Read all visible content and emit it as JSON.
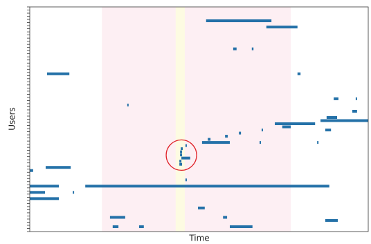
{
  "chart_data": {
    "type": "timeline",
    "xlabel": "Time",
    "ylabel": "Users",
    "xlim": [
      0,
      100
    ],
    "ylim": [
      0,
      72
    ],
    "yticks": [
      0,
      1,
      2,
      3,
      4,
      5,
      6,
      7,
      8,
      9,
      10,
      11,
      12,
      13,
      14,
      15,
      16,
      17,
      18,
      19,
      20,
      21,
      22,
      23,
      24,
      25,
      26,
      27,
      28,
      29,
      30,
      31,
      32,
      33,
      34,
      35,
      36,
      37,
      38,
      39,
      40,
      41,
      42,
      43,
      44,
      45,
      46,
      47,
      48,
      49,
      50,
      51,
      52,
      53,
      54,
      55,
      56,
      57,
      58,
      59,
      60,
      61,
      62,
      63,
      64,
      65,
      66,
      67,
      68,
      69,
      70,
      71,
      72
    ],
    "color": "#2471a8",
    "regions": [
      {
        "start": 21.3,
        "end": 77.1,
        "color": "#fdeff3"
      },
      {
        "start": 43.1,
        "end": 45.8,
        "color": "#fdfbe2"
      }
    ],
    "annotation": {
      "x": 44.8,
      "user": 47.5,
      "color": "#e0242a"
    },
    "segments": [
      {
        "user": 4,
        "start": 52.1,
        "end": 71.4
      },
      {
        "user": 6,
        "start": 69.9,
        "end": 79.1
      },
      {
        "user": 13,
        "start": 60.1,
        "end": 61.1
      },
      {
        "user": 13,
        "start": 65.6,
        "end": 66.1
      },
      {
        "user": 21,
        "start": 5.1,
        "end": 11.7
      },
      {
        "user": 21,
        "start": 79.1,
        "end": 80.0
      },
      {
        "user": 29,
        "start": 89.8,
        "end": 91.2
      },
      {
        "user": 29,
        "start": 96.3,
        "end": 96.7
      },
      {
        "user": 31,
        "start": 28.8,
        "end": 29.2
      },
      {
        "user": 33,
        "start": 95.3,
        "end": 96.7
      },
      {
        "user": 35,
        "start": 87.7,
        "end": 90.8
      },
      {
        "user": 36,
        "start": 85.9,
        "end": 100
      },
      {
        "user": 37,
        "start": 72.4,
        "end": 84.3
      },
      {
        "user": 37,
        "start": 77.1,
        "end": 78.7
      },
      {
        "user": 38,
        "start": 74.6,
        "end": 77.1
      },
      {
        "user": 39,
        "start": 87.3,
        "end": 89.0
      },
      {
        "user": 39,
        "start": 68.5,
        "end": 68.7
      },
      {
        "user": 40,
        "start": 61.8,
        "end": 62.4
      },
      {
        "user": 41,
        "start": 57.7,
        "end": 58.5
      },
      {
        "user": 42,
        "start": 52.6,
        "end": 53.4
      },
      {
        "user": 43,
        "start": 50.9,
        "end": 59.1
      },
      {
        "user": 43,
        "start": 67.9,
        "end": 68.1
      },
      {
        "user": 43,
        "start": 84.9,
        "end": 85.1
      },
      {
        "user": 44,
        "start": 46.0,
        "end": 46.4
      },
      {
        "user": 45,
        "start": 44.6,
        "end": 45.2
      },
      {
        "user": 46,
        "start": 44.4,
        "end": 45.0
      },
      {
        "user": 47,
        "start": 44.4,
        "end": 45.0
      },
      {
        "user": 48,
        "start": 44.8,
        "end": 47.4
      },
      {
        "user": 49,
        "start": 44.2,
        "end": 44.8
      },
      {
        "user": 50,
        "start": 44.2,
        "end": 45.0
      },
      {
        "user": 51,
        "start": 4.7,
        "end": 12.1
      },
      {
        "user": 52,
        "start": 0,
        "end": 1.0
      },
      {
        "user": 55,
        "start": 46.0,
        "end": 46.4
      },
      {
        "user": 57,
        "start": 0,
        "end": 8.6
      },
      {
        "user": 57,
        "start": 16.4,
        "end": 88.5
      },
      {
        "user": 59,
        "start": 0,
        "end": 4.5
      },
      {
        "user": 59,
        "start": 12.7,
        "end": 13.1
      },
      {
        "user": 61,
        "start": 0,
        "end": 8.6
      },
      {
        "user": 64,
        "start": 49.7,
        "end": 51.7
      },
      {
        "user": 67,
        "start": 23.7,
        "end": 28.2
      },
      {
        "user": 67,
        "start": 57.1,
        "end": 58.3
      },
      {
        "user": 68,
        "start": 87.3,
        "end": 91.0
      },
      {
        "user": 70,
        "start": 24.5,
        "end": 26.2
      },
      {
        "user": 70,
        "start": 32.3,
        "end": 33.7
      },
      {
        "user": 70,
        "start": 59.1,
        "end": 65.8
      }
    ]
  }
}
